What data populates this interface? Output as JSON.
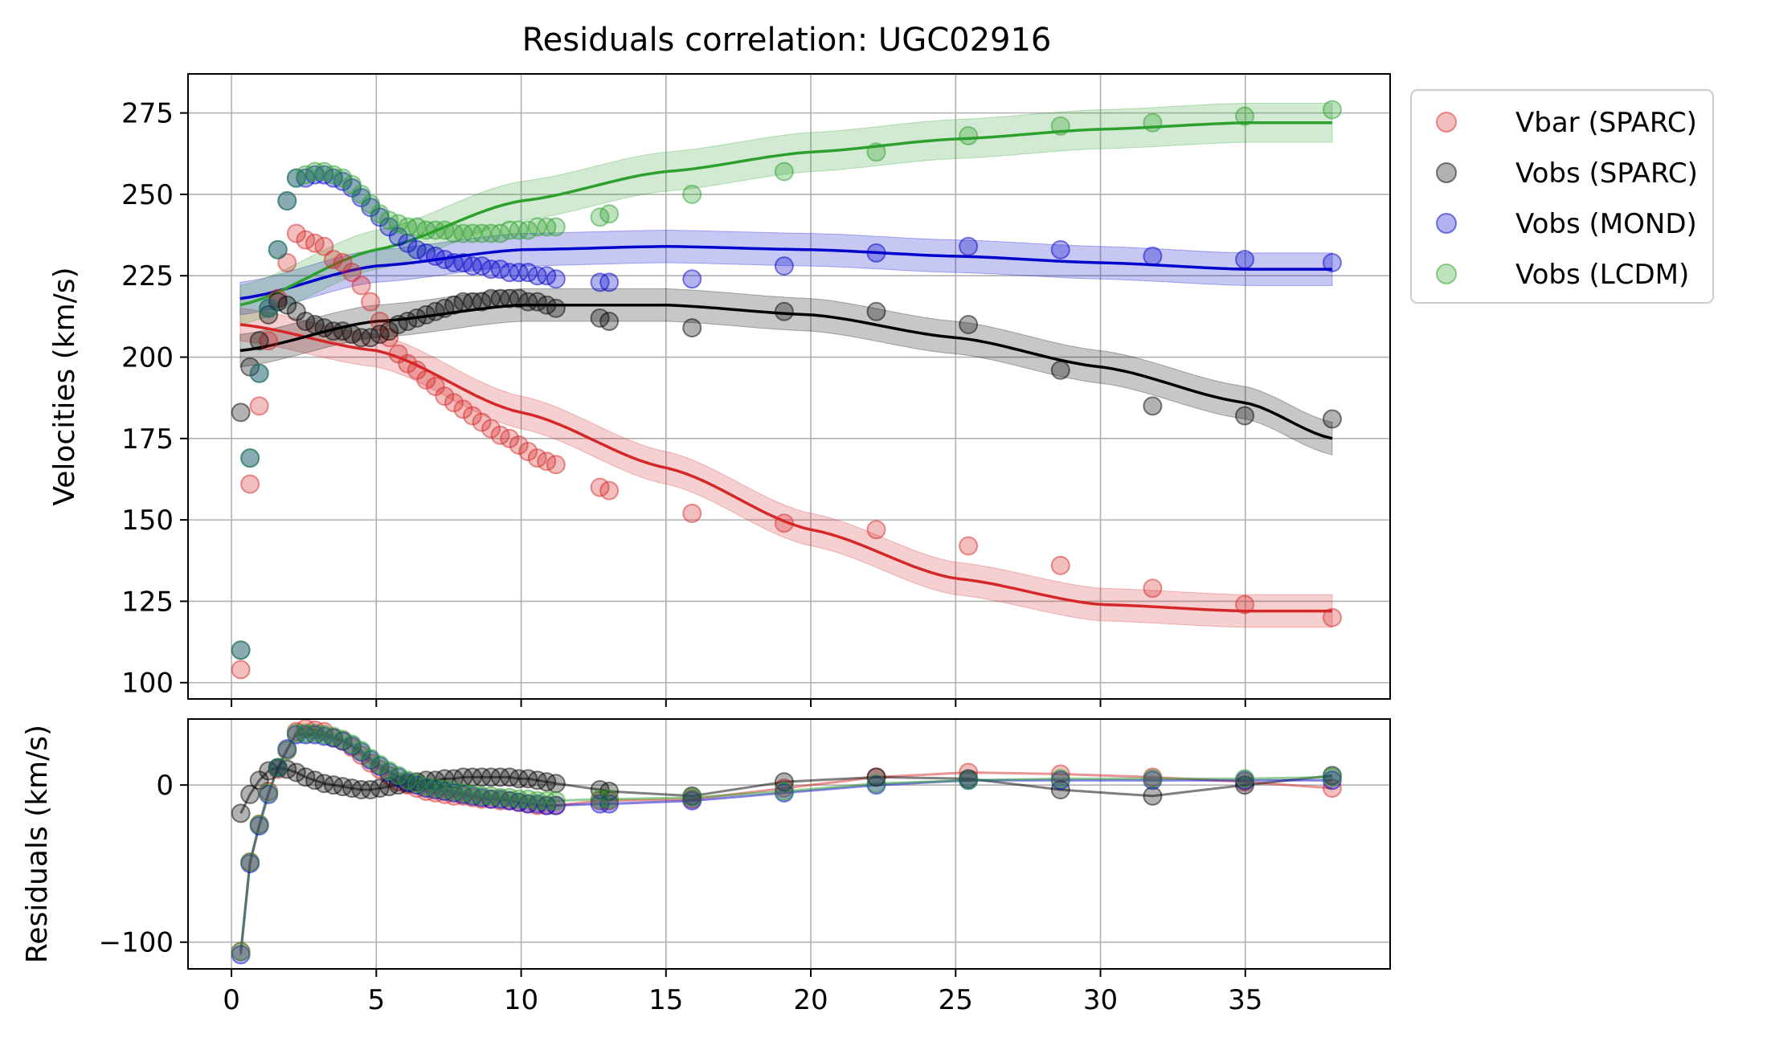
{
  "chart_data": {
    "type": "scatter",
    "title": "Residuals correlation: UGC02916",
    "top_panel": {
      "ylabel": "Velocities (km/s)",
      "ylim": [
        95,
        287
      ],
      "yticks": [
        100,
        125,
        150,
        175,
        200,
        225,
        250,
        275
      ],
      "grid": true
    },
    "bottom_panel": {
      "ylabel": "Residuals (km/s)",
      "ylim": [
        -117,
        42
      ],
      "yticks": [
        -100,
        0
      ],
      "grid": true
    },
    "xlabel": "",
    "xlim": [
      -1.5,
      40
    ],
    "xticks": [
      0,
      5,
      10,
      15,
      20,
      25,
      30,
      35
    ],
    "legend_position": "outside-top-right",
    "radii": [
      0.32,
      0.64,
      0.96,
      1.28,
      1.6,
      1.92,
      2.24,
      2.56,
      2.88,
      3.2,
      3.52,
      3.84,
      4.16,
      4.48,
      4.8,
      5.12,
      5.44,
      5.76,
      6.08,
      6.4,
      6.72,
      7.04,
      7.36,
      7.68,
      8.0,
      8.32,
      8.64,
      8.96,
      9.28,
      9.6,
      9.92,
      10.24,
      10.56,
      10.88,
      11.2,
      12.72,
      13.04,
      15.9,
      19.08,
      22.26,
      25.44,
      28.62,
      31.8,
      34.98,
      38.0
    ],
    "series": [
      {
        "name": "Vbar (SPARC)",
        "color": "#d62728",
        "points": [
          104,
          161,
          185,
          205,
          218,
          229,
          238,
          236,
          235,
          234,
          230,
          229,
          226,
          222,
          217,
          211,
          206,
          201,
          198,
          196,
          193,
          191,
          188,
          186,
          184,
          182,
          180,
          178,
          176,
          175,
          173,
          171,
          169,
          168,
          167,
          160,
          159,
          152,
          149,
          147,
          142,
          136,
          129,
          124,
          120
        ],
        "fit": [
          [
            0.3,
            210
          ],
          [
            5,
            202
          ],
          [
            10,
            183
          ],
          [
            15,
            166
          ],
          [
            20,
            147
          ],
          [
            25,
            132
          ],
          [
            30,
            124
          ],
          [
            35,
            122
          ],
          [
            38,
            122
          ]
        ],
        "band": 5,
        "residuals": [
          -106,
          -49,
          -25,
          -4,
          10,
          22,
          34,
          36,
          35,
          34,
          30,
          28,
          24,
          19,
          14,
          10,
          6,
          2,
          0,
          -2,
          -4,
          -5,
          -6,
          -7,
          -7,
          -8,
          -9,
          -9,
          -10,
          -10,
          -11,
          -12,
          -13,
          -13,
          -13,
          -10,
          -10,
          -9,
          -2,
          5,
          8,
          7,
          5,
          2,
          -2
        ]
      },
      {
        "name": "Vobs (SPARC)",
        "color": "#000000",
        "points": [
          183,
          197,
          205,
          213,
          217,
          216,
          214,
          211,
          210,
          209,
          208,
          208,
          207,
          206,
          206,
          207,
          208,
          210,
          211,
          212,
          213,
          214,
          215,
          216,
          217,
          217,
          217,
          218,
          218,
          218,
          218,
          217,
          217,
          216,
          215,
          212,
          211,
          209,
          214,
          214,
          210,
          196,
          185,
          182,
          181
        ],
        "fit": [
          [
            0.3,
            202
          ],
          [
            5,
            211
          ],
          [
            10,
            216
          ],
          [
            15,
            216
          ],
          [
            20,
            213
          ],
          [
            25,
            206
          ],
          [
            30,
            197
          ],
          [
            35,
            186
          ],
          [
            38,
            175
          ]
        ],
        "band": 5,
        "residuals": [
          -18,
          -6,
          3,
          9,
          11,
          10,
          8,
          5,
          3,
          1,
          0,
          -1,
          -2,
          -3,
          -3,
          -2,
          -1,
          0,
          1,
          2,
          3,
          3,
          4,
          4,
          5,
          5,
          5,
          5,
          5,
          5,
          4,
          4,
          3,
          2,
          1,
          -3,
          -4,
          -7,
          2,
          5,
          4,
          -3,
          -7,
          0,
          6
        ]
      },
      {
        "name": "Vobs (MOND)",
        "color": "#0000cd",
        "points": [
          110,
          169,
          195,
          215,
          233,
          248,
          255,
          255,
          256,
          256,
          255,
          254,
          252,
          249,
          246,
          243,
          240,
          237,
          235,
          233,
          232,
          231,
          230,
          229,
          229,
          228,
          228,
          227,
          227,
          226,
          226,
          226,
          225,
          225,
          224,
          223,
          223,
          224,
          228,
          232,
          234,
          233,
          231,
          230,
          229
        ],
        "fit": [
          [
            0.3,
            218
          ],
          [
            5,
            228
          ],
          [
            10,
            233
          ],
          [
            15,
            234
          ],
          [
            20,
            233
          ],
          [
            25,
            231
          ],
          [
            30,
            229
          ],
          [
            35,
            227
          ],
          [
            38,
            227
          ]
        ],
        "band": 5,
        "residuals": [
          -108,
          -50,
          -26,
          -6,
          11,
          23,
          32,
          32,
          32,
          31,
          30,
          28,
          25,
          21,
          16,
          12,
          8,
          5,
          2,
          0,
          -2,
          -3,
          -4,
          -5,
          -6,
          -7,
          -8,
          -9,
          -9,
          -10,
          -11,
          -12,
          -12,
          -13,
          -13,
          -12,
          -12,
          -10,
          -5,
          0,
          3,
          3,
          3,
          3,
          3
        ]
      },
      {
        "name": "Vobs (LCDM)",
        "color": "#2ca02c",
        "points": [
          110,
          169,
          195,
          215,
          233,
          248,
          255,
          256,
          257,
          257,
          256,
          255,
          253,
          250,
          247,
          244,
          242,
          241,
          240,
          240,
          239,
          239,
          239,
          238,
          238,
          238,
          238,
          238,
          238,
          239,
          239,
          239,
          240,
          240,
          240,
          243,
          244,
          250,
          257,
          263,
          268,
          271,
          272,
          274,
          276
        ],
        "fit": [
          [
            0.3,
            216
          ],
          [
            5,
            233
          ],
          [
            10,
            248
          ],
          [
            15,
            257
          ],
          [
            20,
            263
          ],
          [
            25,
            267
          ],
          [
            30,
            270
          ],
          [
            35,
            272
          ],
          [
            38,
            272
          ]
        ],
        "band": 6,
        "residuals": [
          -106,
          -49,
          -25,
          -5,
          11,
          22,
          33,
          33,
          33,
          32,
          31,
          29,
          26,
          22,
          17,
          13,
          9,
          6,
          3,
          1,
          -1,
          -2,
          -3,
          -4,
          -5,
          -6,
          -7,
          -7,
          -8,
          -8,
          -9,
          -9,
          -10,
          -10,
          -10,
          -9,
          -9,
          -8,
          -4,
          1,
          3,
          4,
          4,
          4,
          5
        ]
      }
    ]
  }
}
